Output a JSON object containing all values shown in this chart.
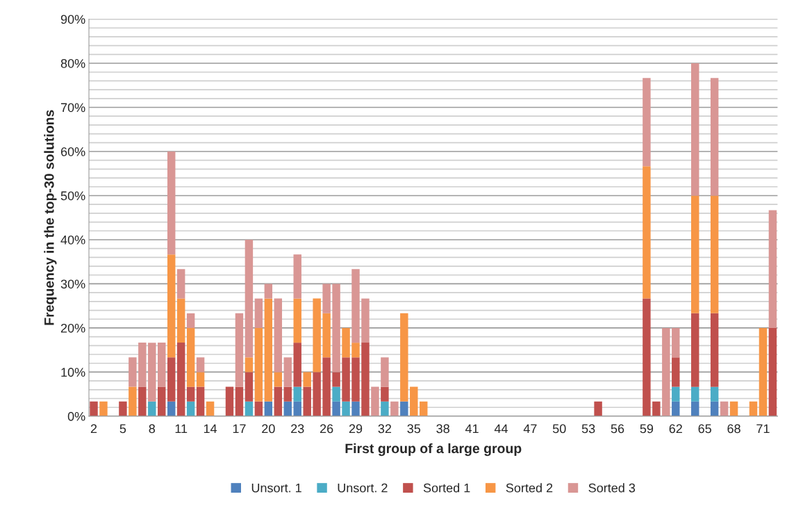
{
  "chart_data": {
    "type": "bar",
    "stacked": true,
    "xlabel": "First group of a large group",
    "ylabel": "Frequency in the top-30 solutions",
    "categories": [
      "2",
      null,
      null,
      "5",
      null,
      null,
      "8",
      null,
      null,
      "11",
      null,
      null,
      "14",
      null,
      null,
      "17",
      null,
      null,
      "20",
      null,
      null,
      "23",
      null,
      null,
      "26",
      null,
      null,
      "29",
      null,
      null,
      "32",
      null,
      null,
      "35",
      null,
      null,
      "38",
      null,
      null,
      "41",
      null,
      null,
      "44",
      null,
      null,
      "47",
      null,
      null,
      "50",
      null,
      null,
      "53",
      null,
      null,
      "56",
      null,
      null,
      "59",
      null,
      null,
      "62",
      null,
      null,
      "65",
      null,
      null,
      "68",
      null,
      null,
      "71",
      null
    ],
    "series": [
      {
        "name": "Unsort. 1",
        "color": "#4f81bd",
        "values": [
          0,
          0,
          0,
          0,
          0,
          0,
          0,
          0,
          3.33,
          0,
          0,
          0,
          0,
          0,
          0,
          0,
          0,
          0,
          3.33,
          0,
          3.33,
          3.33,
          0,
          0,
          0,
          3.33,
          0,
          3.33,
          0,
          0,
          0,
          0,
          3.33,
          0,
          0,
          0,
          0,
          0,
          0,
          0,
          0,
          0,
          0,
          0,
          0,
          0,
          0,
          0,
          0,
          0,
          0,
          0,
          0,
          0,
          0,
          0,
          0,
          0,
          0,
          0,
          3.33,
          0,
          3.33,
          0,
          3.33,
          0,
          0,
          0,
          0,
          0,
          0
        ]
      },
      {
        "name": "Unsort. 2",
        "color": "#4bacc6",
        "values": [
          0,
          0,
          0,
          0,
          0,
          0,
          3.33,
          0,
          0,
          0,
          3.33,
          0,
          0,
          0,
          0,
          0,
          3.33,
          0,
          0,
          0,
          0,
          3.33,
          0,
          0,
          0,
          3.33,
          3.33,
          0,
          0,
          0,
          3.33,
          0,
          0,
          0,
          0,
          0,
          0,
          0,
          0,
          0,
          0,
          0,
          0,
          0,
          0,
          0,
          0,
          0,
          0,
          0,
          0,
          0,
          0,
          0,
          0,
          0,
          0,
          0,
          0,
          0,
          3.33,
          0,
          3.33,
          0,
          3.33,
          0,
          0,
          0,
          0,
          0,
          0
        ]
      },
      {
        "name": "Sorted 1",
        "color": "#c0504d",
        "values": [
          3.33,
          0,
          0,
          3.33,
          0,
          6.67,
          0,
          6.67,
          10,
          16.67,
          3.33,
          6.67,
          0,
          0,
          6.67,
          6.67,
          6.67,
          3.33,
          0,
          6.67,
          3.33,
          10,
          6.67,
          10,
          13.33,
          3.33,
          10,
          10,
          16.67,
          0,
          3.33,
          0,
          0,
          0,
          0,
          0,
          0,
          0,
          0,
          0,
          0,
          0,
          0,
          0,
          0,
          0,
          0,
          0,
          0,
          0,
          0,
          0,
          3.33,
          0,
          0,
          0,
          0,
          26.67,
          3.33,
          0,
          6.67,
          0,
          16.67,
          0,
          16.67,
          0,
          0,
          0,
          0,
          0,
          20
        ]
      },
      {
        "name": "Sorted 2",
        "color": "#f79646",
        "values": [
          0,
          3.33,
          0,
          0,
          6.67,
          0,
          0,
          0,
          23.33,
          10,
          13.33,
          3.33,
          3.33,
          0,
          0,
          0,
          3.33,
          16.67,
          23.33,
          3.33,
          0,
          10,
          3.33,
          16.67,
          10,
          0,
          6.67,
          3.33,
          0,
          0,
          0,
          0,
          20,
          6.67,
          3.33,
          0,
          0,
          0,
          0,
          0,
          0,
          0,
          0,
          0,
          0,
          0,
          0,
          0,
          0,
          0,
          0,
          0,
          0,
          0,
          0,
          0,
          0,
          30,
          0,
          0,
          0,
          0,
          26.67,
          0,
          26.67,
          0,
          3.33,
          0,
          3.33,
          20,
          0
        ]
      },
      {
        "name": "Sorted 3",
        "color": "#d99694",
        "values": [
          0,
          0,
          0,
          0,
          6.67,
          10,
          13.33,
          10,
          23.33,
          6.67,
          3.33,
          3.33,
          0,
          0,
          0,
          16.67,
          26.67,
          6.67,
          3.33,
          16.67,
          6.67,
          10,
          0,
          0,
          6.67,
          20,
          0,
          16.67,
          10,
          6.67,
          6.67,
          3.33,
          0,
          0,
          0,
          0,
          0,
          0,
          0,
          0,
          0,
          0,
          0,
          0,
          0,
          0,
          0,
          0,
          0,
          0,
          0,
          0,
          0,
          0,
          0,
          0,
          0,
          20,
          0,
          20,
          6.67,
          0,
          30,
          0,
          26.67,
          3.33,
          0,
          0,
          0,
          0,
          26.67
        ]
      }
    ],
    "ylim": [
      0,
      90
    ],
    "yticks": [
      {
        "value": 0,
        "label": "0%"
      },
      {
        "value": 2,
        "label": null
      },
      {
        "value": 4,
        "label": null
      },
      {
        "value": 6,
        "label": null
      },
      {
        "value": 8,
        "label": null
      },
      {
        "value": 10,
        "label": "10%"
      },
      {
        "value": 12,
        "label": null
      },
      {
        "value": 14,
        "label": null
      },
      {
        "value": 16,
        "label": null
      },
      {
        "value": 18,
        "label": null
      },
      {
        "value": 20,
        "label": "20%"
      },
      {
        "value": 22,
        "label": null
      },
      {
        "value": 24,
        "label": null
      },
      {
        "value": 26,
        "label": null
      },
      {
        "value": 28,
        "label": null
      },
      {
        "value": 30,
        "label": "30%"
      },
      {
        "value": 32,
        "label": null
      },
      {
        "value": 34,
        "label": null
      },
      {
        "value": 36,
        "label": null
      },
      {
        "value": 38,
        "label": null
      },
      {
        "value": 40,
        "label": "40%"
      },
      {
        "value": 42,
        "label": null
      },
      {
        "value": 44,
        "label": null
      },
      {
        "value": 46,
        "label": null
      },
      {
        "value": 48,
        "label": null
      },
      {
        "value": 50,
        "label": "50%"
      },
      {
        "value": 52,
        "label": null
      },
      {
        "value": 54,
        "label": null
      },
      {
        "value": 56,
        "label": null
      },
      {
        "value": 58,
        "label": null
      },
      {
        "value": 60,
        "label": "60%"
      },
      {
        "value": 62,
        "label": null
      },
      {
        "value": 64,
        "label": null
      },
      {
        "value": 66,
        "label": null
      },
      {
        "value": 68,
        "label": null
      },
      {
        "value": 70,
        "label": "70%"
      },
      {
        "value": 72,
        "label": null
      },
      {
        "value": 74,
        "label": null
      },
      {
        "value": 76,
        "label": null
      },
      {
        "value": 78,
        "label": null
      },
      {
        "value": 80,
        "label": "80%"
      },
      {
        "value": 82,
        "label": null
      },
      {
        "value": 84,
        "label": null
      },
      {
        "value": 86,
        "label": null
      },
      {
        "value": 88,
        "label": null
      },
      {
        "value": 90,
        "label": "90%"
      }
    ],
    "grid": "y",
    "legend": "bottom"
  }
}
